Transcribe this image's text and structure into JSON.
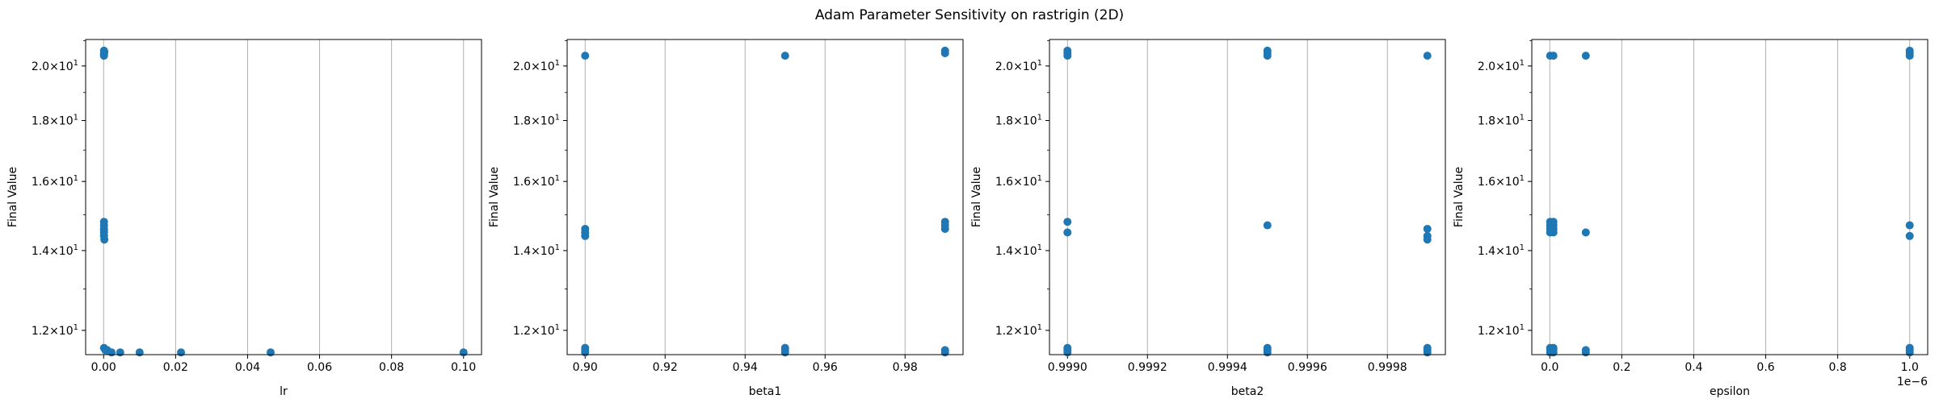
{
  "figure": {
    "title": "Adam Parameter Sensitivity on rastrigin (2D)"
  },
  "colors": {
    "points": "#1f77b4",
    "grid": "#b0b0b0",
    "axes": "#000000"
  },
  "chart_data": [
    {
      "type": "scatter",
      "xlabel": "lr",
      "ylabel": "Final Value",
      "xlim": [
        -0.005,
        0.105
      ],
      "ylim": [
        11.45,
        21.05
      ],
      "yscale": "log",
      "grid": "x-only",
      "x_ticks": [
        0.0,
        0.02,
        0.04,
        0.06,
        0.08,
        0.1
      ],
      "x_tick_labels": [
        "0.00",
        "0.02",
        "0.04",
        "0.06",
        "0.08",
        "0.10"
      ],
      "x_offset_text": "",
      "y_ticks": [
        12,
        14,
        16,
        18,
        20
      ],
      "y_tick_labels": [
        [
          "1.2",
          "10",
          "1"
        ],
        [
          "1.4",
          "10",
          "1"
        ],
        [
          "1.6",
          "10",
          "1"
        ],
        [
          "1.8",
          "10",
          "1"
        ],
        [
          "2.0",
          "10",
          "1"
        ]
      ],
      "points": [
        [
          0.0001,
          20.6
        ],
        [
          0.0001,
          20.5
        ],
        [
          0.0001,
          20.45
        ],
        [
          0.0001,
          20.4
        ],
        [
          0.0002,
          20.55
        ],
        [
          0.0001,
          14.8
        ],
        [
          0.0001,
          14.7
        ],
        [
          0.0001,
          14.6
        ],
        [
          0.0001,
          14.5
        ],
        [
          0.0001,
          14.4
        ],
        [
          0.0002,
          14.3
        ],
        [
          0.0001,
          14.55
        ],
        [
          0.0001,
          11.6
        ],
        [
          0.0005,
          11.55
        ],
        [
          0.001,
          11.55
        ],
        [
          0.0022,
          11.5
        ],
        [
          0.0046,
          11.5
        ],
        [
          0.01,
          11.5
        ],
        [
          0.0215,
          11.5
        ],
        [
          0.0464,
          11.5
        ],
        [
          0.1,
          11.5
        ]
      ]
    },
    {
      "type": "scatter",
      "xlabel": "beta1",
      "ylabel": "Final Value",
      "xlim": [
        0.8955,
        0.9945
      ],
      "ylim": [
        11.45,
        21.05
      ],
      "yscale": "log",
      "grid": "x-only",
      "x_ticks": [
        0.9,
        0.92,
        0.94,
        0.96,
        0.98
      ],
      "x_tick_labels": [
        "0.90",
        "0.92",
        "0.94",
        "0.96",
        "0.98"
      ],
      "x_offset_text": "",
      "y_ticks": [
        12,
        14,
        16,
        18,
        20
      ],
      "y_tick_labels": [
        [
          "1.2",
          "10",
          "1"
        ],
        [
          "1.4",
          "10",
          "1"
        ],
        [
          "1.6",
          "10",
          "1"
        ],
        [
          "1.8",
          "10",
          "1"
        ],
        [
          "2.0",
          "10",
          "1"
        ]
      ],
      "points": [
        [
          0.9,
          20.4
        ],
        [
          0.9,
          14.6
        ],
        [
          0.9,
          14.5
        ],
        [
          0.9,
          14.4
        ],
        [
          0.9,
          11.6
        ],
        [
          0.9,
          11.55
        ],
        [
          0.9,
          11.5
        ],
        [
          0.95,
          20.4
        ],
        [
          0.95,
          11.6
        ],
        [
          0.95,
          11.55
        ],
        [
          0.95,
          11.5
        ],
        [
          0.99,
          20.6
        ],
        [
          0.99,
          20.5
        ],
        [
          0.99,
          14.8
        ],
        [
          0.99,
          14.7
        ],
        [
          0.99,
          14.6
        ],
        [
          0.99,
          11.55
        ],
        [
          0.99,
          11.5
        ]
      ]
    },
    {
      "type": "scatter",
      "xlabel": "beta2",
      "ylabel": "Final Value",
      "xlim": [
        0.998955,
        0.999945
      ],
      "ylim": [
        11.45,
        21.05
      ],
      "yscale": "log",
      "grid": "x-only",
      "x_ticks": [
        0.999,
        0.9992,
        0.9994,
        0.9996,
        0.9998
      ],
      "x_tick_labels": [
        "0.9990",
        "0.9992",
        "0.9994",
        "0.9996",
        "0.9998"
      ],
      "x_offset_text": "",
      "y_ticks": [
        12,
        14,
        16,
        18,
        20
      ],
      "y_tick_labels": [
        [
          "1.2",
          "10",
          "1"
        ],
        [
          "1.4",
          "10",
          "1"
        ],
        [
          "1.6",
          "10",
          "1"
        ],
        [
          "1.8",
          "10",
          "1"
        ],
        [
          "2.0",
          "10",
          "1"
        ]
      ],
      "points": [
        [
          0.999,
          20.6
        ],
        [
          0.999,
          20.5
        ],
        [
          0.999,
          20.4
        ],
        [
          0.999,
          14.8
        ],
        [
          0.999,
          14.5
        ],
        [
          0.999,
          11.6
        ],
        [
          0.999,
          11.55
        ],
        [
          0.999,
          11.5
        ],
        [
          0.9995,
          20.6
        ],
        [
          0.9995,
          20.5
        ],
        [
          0.9995,
          20.4
        ],
        [
          0.9995,
          14.7
        ],
        [
          0.9995,
          11.6
        ],
        [
          0.9995,
          11.55
        ],
        [
          0.9995,
          11.5
        ],
        [
          0.9999,
          20.4
        ],
        [
          0.9999,
          14.6
        ],
        [
          0.9999,
          14.4
        ],
        [
          0.9999,
          14.3
        ],
        [
          0.9999,
          11.6
        ],
        [
          0.9999,
          11.55
        ],
        [
          0.9999,
          11.5
        ]
      ]
    },
    {
      "type": "scatter",
      "xlabel": "epsilon",
      "ylabel": "Final Value",
      "xlim": [
        -0.05,
        1.05
      ],
      "ylim": [
        11.45,
        21.05
      ],
      "yscale": "log",
      "grid": "x-only",
      "x_ticks": [
        0.0,
        0.2,
        0.4,
        0.6,
        0.8,
        1.0
      ],
      "x_tick_labels": [
        "0.0",
        "0.2",
        "0.4",
        "0.6",
        "0.8",
        "1.0"
      ],
      "x_offset_text": "1e−6",
      "y_ticks": [
        12,
        14,
        16,
        18,
        20
      ],
      "y_tick_labels": [
        [
          "1.2",
          "10",
          "1"
        ],
        [
          "1.4",
          "10",
          "1"
        ],
        [
          "1.6",
          "10",
          "1"
        ],
        [
          "1.8",
          "10",
          "1"
        ],
        [
          "2.0",
          "10",
          "1"
        ]
      ],
      "points": [
        [
          0.001,
          20.4
        ],
        [
          0.001,
          14.8
        ],
        [
          0.001,
          14.7
        ],
        [
          0.001,
          14.6
        ],
        [
          0.001,
          14.5
        ],
        [
          0.001,
          11.6
        ],
        [
          0.001,
          11.55
        ],
        [
          0.001,
          11.5
        ],
        [
          0.01,
          20.4
        ],
        [
          0.01,
          14.8
        ],
        [
          0.01,
          14.7
        ],
        [
          0.01,
          14.6
        ],
        [
          0.01,
          14.5
        ],
        [
          0.01,
          11.6
        ],
        [
          0.01,
          11.55
        ],
        [
          0.01,
          11.5
        ],
        [
          0.1,
          20.4
        ],
        [
          0.1,
          14.5
        ],
        [
          0.1,
          11.55
        ],
        [
          0.1,
          11.5
        ],
        [
          1.0,
          20.6
        ],
        [
          1.0,
          20.5
        ],
        [
          1.0,
          20.4
        ],
        [
          1.0,
          14.7
        ],
        [
          1.0,
          14.4
        ],
        [
          1.0,
          11.6
        ],
        [
          1.0,
          11.55
        ],
        [
          1.0,
          11.5
        ]
      ]
    }
  ]
}
